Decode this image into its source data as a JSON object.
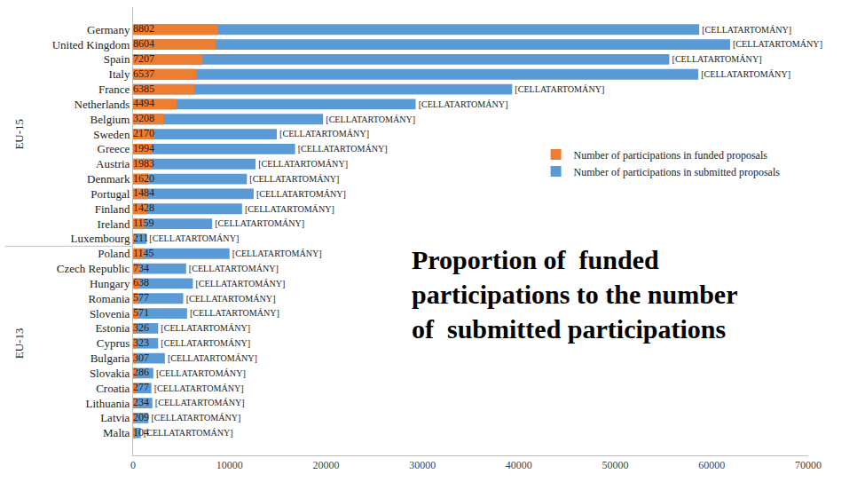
{
  "chart_data": {
    "type": "bar",
    "orientation": "horizontal",
    "stacked": false,
    "grid": false,
    "legend": "right",
    "data_labels": true,
    "annotations": [
      "Proportion of  funded",
      "participations to the number",
      "of  submitted participations"
    ],
    "categories": [
      "Germany",
      "United Kingdom",
      "Spain",
      "Italy",
      "France",
      "Netherlands",
      "Belgium",
      "Sweden",
      "Greece",
      "Austria",
      "Denmark",
      "Portugal",
      "Finland",
      "Ireland",
      "Luxembourg",
      "Poland",
      "Czech Republic",
      "Hungary",
      "Romania",
      "Slovenia",
      "Estonia",
      "Cyprus",
      "Bulgaria",
      "Slovakia",
      "Croatia",
      "Lithuania",
      "Latvia",
      "Malta"
    ],
    "groups": [
      "EU-15",
      "EU-15",
      "EU-15",
      "EU-15",
      "EU-15",
      "EU-15",
      "EU-15",
      "EU-15",
      "EU-15",
      "EU-15",
      "EU-15",
      "EU-15",
      "EU-15",
      "EU-15",
      "EU-15",
      "EU-13",
      "EU-13",
      "EU-13",
      "EU-13",
      "EU-13",
      "EU-13",
      "EU-13",
      "EU-13",
      "EU-13",
      "EU-13",
      "EU-13",
      "EU-13",
      "EU-13"
    ],
    "series": [
      {
        "name": "Number of participations in funded proposals",
        "color": "#ED7D31",
        "values": [
          8802,
          8604,
          7207,
          6537,
          6385,
          4494,
          3208,
          2170,
          1994,
          1983,
          1620,
          1484,
          1428,
          1159,
          211,
          1145,
          734,
          638,
          577,
          571,
          326,
          323,
          307,
          286,
          277,
          234,
          209,
          104
        ]
      },
      {
        "name": "Number of participations in submitted proposals",
        "color": "#5B9BD5",
        "values": [
          58700,
          61900,
          55600,
          58600,
          39300,
          29300,
          19700,
          14900,
          16800,
          12700,
          11800,
          12500,
          11300,
          8200,
          1400,
          10000,
          5500,
          6200,
          5200,
          5600,
          2600,
          2600,
          3300,
          2100,
          1900,
          2000,
          1600,
          800
        ],
        "value_labels": [
          "[CELLATARTOMÁNY]",
          "[CELLATARTOMÁNY]",
          "[CELLATARTOMÁNY]",
          "[CELLATARTOMÁNY]",
          "[CELLATARTOMÁNY]",
          "[CELLATARTOMÁNY]",
          "[CELLATARTOMÁNY]",
          "[CELLATARTOMÁNY]",
          "[CELLATARTOMÁNY]",
          "[CELLATARTOMÁNY]",
          "[CELLATARTOMÁNY]",
          "[CELLATARTOMÁNY]",
          "[CELLATARTOMÁNY]",
          "[CELLATARTOMÁNY]",
          "[CELLATARTOMÁNY]",
          "[CELLATARTOMÁNY]",
          "[CELLATARTOMÁNY]",
          "[CELLATARTOMÁNY]",
          "[CELLATARTOMÁNY]",
          "[CELLATARTOMÁNY]",
          "[CELLATARTOMÁNY]",
          "[CELLATARTOMÁNY]",
          "[CELLATARTOMÁNY]",
          "[CELLATARTOMÁNY]",
          "[CELLATARTOMÁNY]",
          "[CELLATARTOMÁNY]",
          "[CELLATARTOMÁNY]",
          "[CELLATARTOMÁNY]"
        ]
      }
    ],
    "xlim": [
      0,
      70000
    ],
    "xticks": [
      0,
      10000,
      20000,
      30000,
      40000,
      50000,
      60000,
      70000
    ]
  }
}
